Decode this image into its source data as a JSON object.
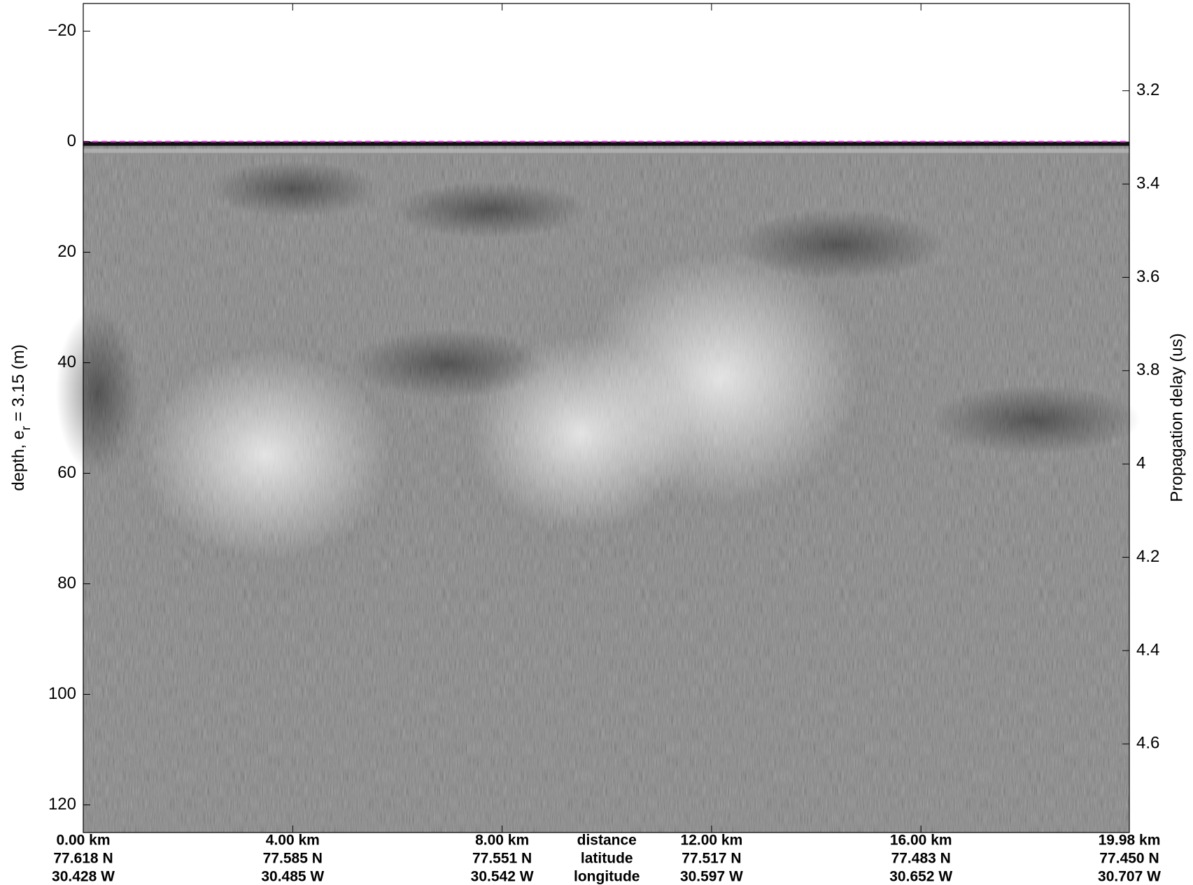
{
  "chart_data": {
    "type": "echogram",
    "ylabel": [
      "depth, e",
      "r",
      " = 3.15 (m)"
    ],
    "y2label": "Propagation delay (us)",
    "xlim": [
      0,
      19.98
    ],
    "xticks": [
      {
        "value": 0,
        "label": "0.00 km"
      },
      {
        "value": 4,
        "label": "4.00 km"
      },
      {
        "value": 8,
        "label": "8.00 km"
      },
      {
        "value": 12,
        "label": "12.00 km"
      },
      {
        "value": 16,
        "label": "16.00 km"
      },
      {
        "value": 19.98,
        "label": "19.98 km"
      }
    ],
    "latitude_labels": [
      "77.618 N",
      "77.585 N",
      "77.551 N",
      "77.517 N",
      "77.483 N",
      "77.450 N"
    ],
    "longitude_labels": [
      "30.428 W",
      "30.485 W",
      "30.542 W",
      "30.597 W",
      "30.652 W",
      "30.707 W"
    ],
    "row_names": [
      "distance",
      "latitude",
      "longitude"
    ],
    "ylim": [
      -25,
      125
    ],
    "yticks": [
      {
        "value": -20,
        "label": "−20"
      },
      0,
      20,
      40,
      60,
      80,
      100,
      120
    ],
    "y2lim": [
      3.013,
      4.79
    ],
    "y2ticks": [
      3.2,
      3.4,
      3.6,
      3.8,
      4,
      4.2,
      4.4,
      4.6
    ],
    "series": [
      {
        "color": "#e020e0",
        "x": [
          0,
          19.98
        ],
        "values": [
          0,
          0
        ]
      }
    ]
  }
}
